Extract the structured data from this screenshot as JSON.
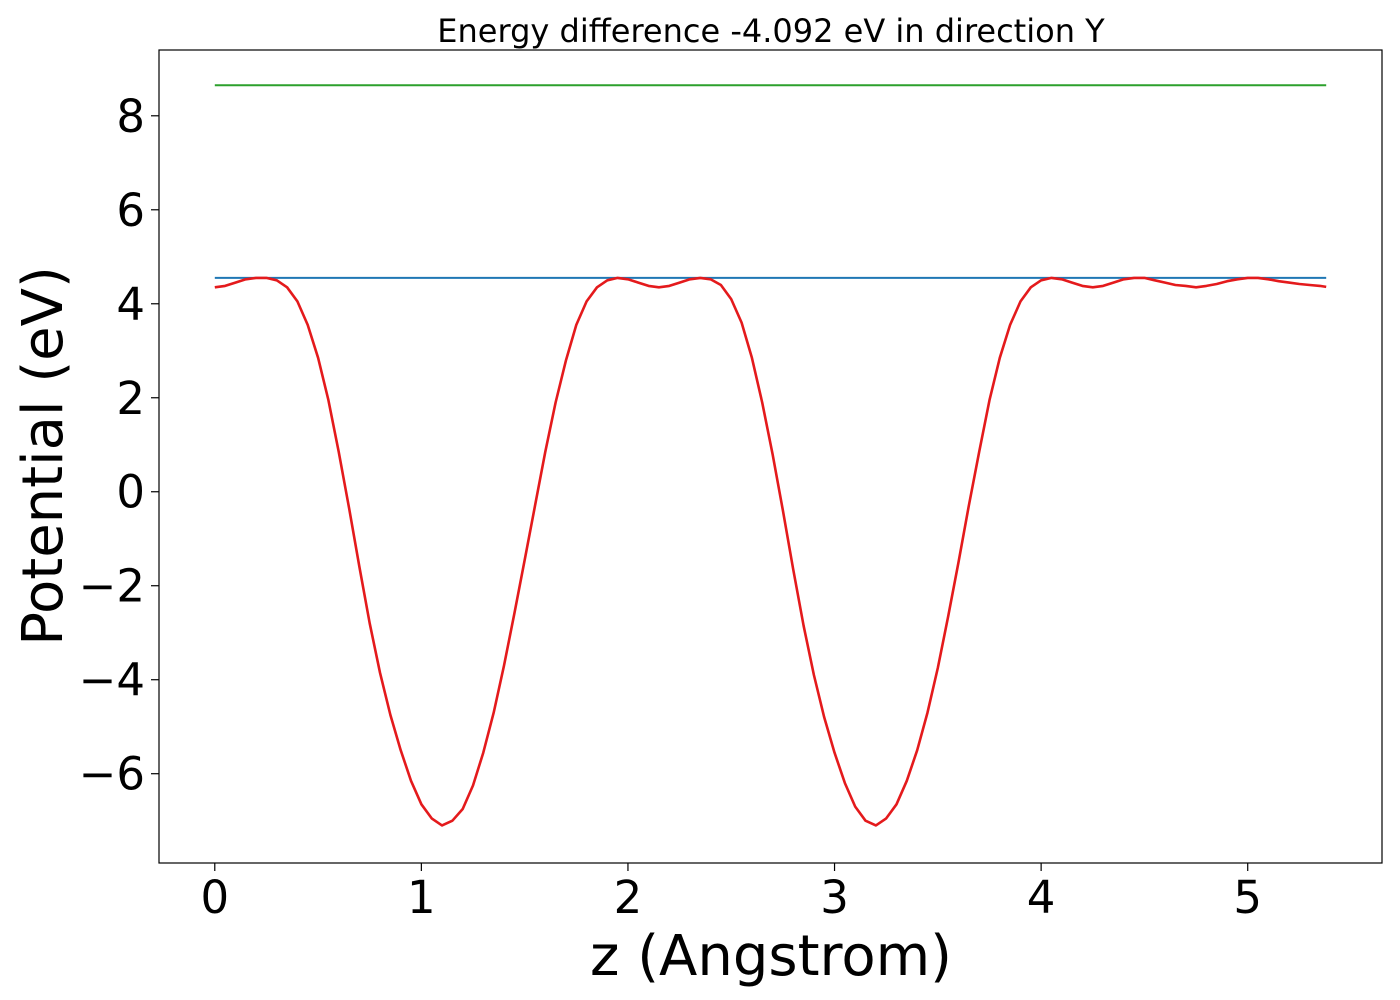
{
  "chart_data": {
    "type": "line",
    "title": "Energy difference -4.092 eV in direction Y",
    "xlabel": "z (Angstrom)",
    "ylabel": "Potential (eV)",
    "xlim": [
      -0.27,
      5.65
    ],
    "ylim": [
      -7.9,
      9.4
    ],
    "xticks": [
      0,
      1,
      2,
      3,
      4,
      5
    ],
    "yticks": [
      -6,
      -4,
      -2,
      0,
      2,
      4,
      6,
      8
    ],
    "ytick_labels": [
      "−6",
      "−4",
      "−2",
      "0",
      "2",
      "4",
      "6",
      "8"
    ],
    "grid": false,
    "series": [
      {
        "color": "#2ca02c",
        "x": [
          0.0,
          5.38
        ],
        "y": [
          8.65,
          8.65
        ]
      },
      {
        "color": "#1f77b4",
        "x": [
          0.0,
          5.38
        ],
        "y": [
          4.55,
          4.55
        ]
      },
      {
        "color": "#e41a1c",
        "x": [
          0.0,
          0.05,
          0.1,
          0.15,
          0.2,
          0.25,
          0.3,
          0.35,
          0.4,
          0.45,
          0.5,
          0.55,
          0.6,
          0.65,
          0.7,
          0.75,
          0.8,
          0.85,
          0.9,
          0.95,
          1.0,
          1.05,
          1.1,
          1.15,
          1.2,
          1.25,
          1.3,
          1.35,
          1.4,
          1.45,
          1.5,
          1.55,
          1.6,
          1.65,
          1.7,
          1.75,
          1.8,
          1.85,
          1.9,
          1.95,
          2.0,
          2.05,
          2.1,
          2.15,
          2.2,
          2.25,
          2.3,
          2.35,
          2.4,
          2.45,
          2.5,
          2.55,
          2.6,
          2.65,
          2.7,
          2.75,
          2.8,
          2.85,
          2.9,
          2.95,
          3.0,
          3.05,
          3.1,
          3.15,
          3.2,
          3.25,
          3.3,
          3.35,
          3.4,
          3.45,
          3.5,
          3.55,
          3.6,
          3.65,
          3.7,
          3.75,
          3.8,
          3.85,
          3.9,
          3.95,
          4.0,
          4.05,
          4.1,
          4.15,
          4.2,
          4.25,
          4.3,
          4.35,
          4.4,
          4.45,
          4.5,
          4.55,
          4.6,
          4.65,
          4.7,
          4.75,
          4.8,
          4.85,
          4.9,
          4.95,
          5.0,
          5.05,
          5.1,
          5.15,
          5.2,
          5.25,
          5.3,
          5.35,
          5.38
        ],
        "y": [
          4.35,
          4.38,
          4.45,
          4.52,
          4.55,
          4.55,
          4.5,
          4.35,
          4.05,
          3.55,
          2.85,
          1.95,
          0.85,
          -0.35,
          -1.6,
          -2.8,
          -3.85,
          -4.75,
          -5.5,
          -6.15,
          -6.65,
          -6.95,
          -7.1,
          -7.0,
          -6.75,
          -6.25,
          -5.55,
          -4.7,
          -3.7,
          -2.6,
          -1.45,
          -0.3,
          0.85,
          1.9,
          2.8,
          3.55,
          4.05,
          4.35,
          4.5,
          4.55,
          4.52,
          4.45,
          4.38,
          4.35,
          4.38,
          4.45,
          4.52,
          4.55,
          4.52,
          4.4,
          4.1,
          3.6,
          2.85,
          1.9,
          0.8,
          -0.4,
          -1.65,
          -2.85,
          -3.9,
          -4.8,
          -5.55,
          -6.2,
          -6.7,
          -7.0,
          -7.1,
          -6.95,
          -6.65,
          -6.15,
          -5.5,
          -4.7,
          -3.75,
          -2.65,
          -1.5,
          -0.3,
          0.85,
          1.95,
          2.85,
          3.55,
          4.05,
          4.35,
          4.5,
          4.55,
          4.52,
          4.45,
          4.38,
          4.35,
          4.38,
          4.45,
          4.52,
          4.55,
          4.55,
          4.5,
          4.45,
          4.4,
          4.38,
          4.35,
          4.38,
          4.42,
          4.48,
          4.52,
          4.55,
          4.55,
          4.52,
          4.48,
          4.45,
          4.42,
          4.4,
          4.38,
          4.36
        ]
      }
    ]
  }
}
